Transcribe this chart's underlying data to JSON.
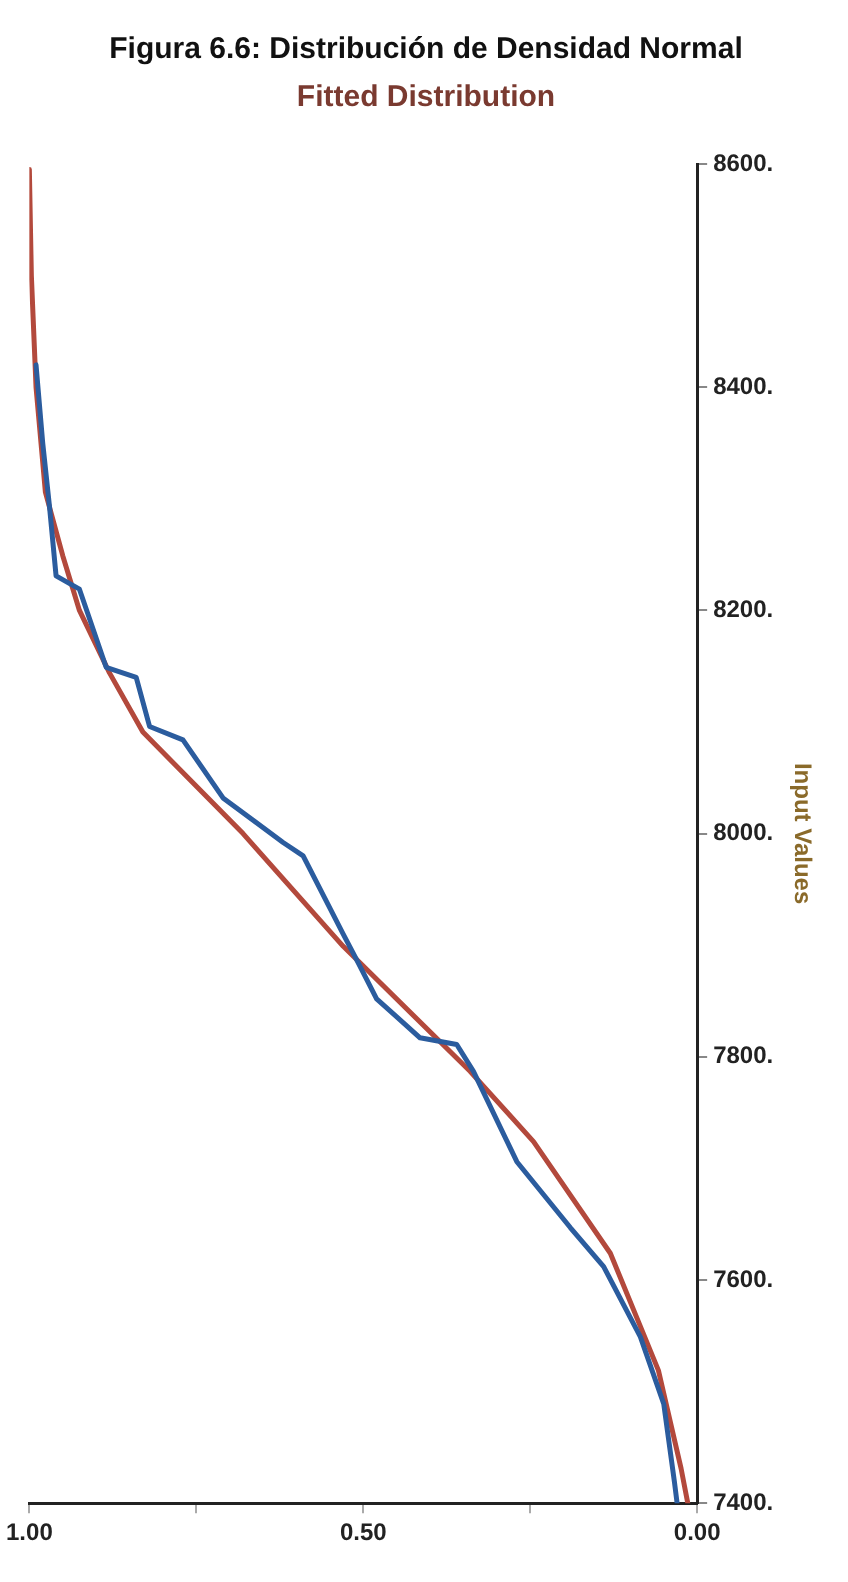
{
  "chart_data": {
    "type": "line",
    "title": "Figura 6.6: Distribución de Densidad Normal",
    "subtitle": "Fitted Distribution",
    "ylabel": "Input Values",
    "ylim": [
      7400,
      8600
    ],
    "yticks": [
      {
        "value": 7400,
        "label": "7400."
      },
      {
        "value": 7600,
        "label": "7600."
      },
      {
        "value": 7800,
        "label": "7800."
      },
      {
        "value": 8000,
        "label": "8000."
      },
      {
        "value": 8200,
        "label": "8200."
      },
      {
        "value": 8400,
        "label": "8400."
      },
      {
        "value": 8600,
        "label": "8600."
      }
    ],
    "xlim": [
      1,
      0
    ],
    "xticks": [
      {
        "value": 1,
        "label": "1.00"
      },
      {
        "value": 0.75,
        "label": null
      },
      {
        "value": 0.5,
        "label": "0.50"
      },
      {
        "value": 0.25,
        "label": null
      },
      {
        "value": 0,
        "label": "0.00"
      }
    ],
    "grid": false,
    "legend": false,
    "marker": "none",
    "line_style": "solid",
    "series": [
      {
        "color": "#2b5c9e",
        "x": [
          0.03,
          0.034,
          0.05,
          0.085,
          0.14,
          0.19,
          0.27,
          0.335,
          0.36,
          0.415,
          0.48,
          0.51,
          0.53,
          0.59,
          0.62,
          0.71,
          0.77,
          0.82,
          0.84,
          0.885,
          0.925,
          0.96,
          0.97,
          0.98,
          0.99
        ],
        "values": [
          7400,
          7419,
          7489,
          7549,
          7612,
          7647,
          7706,
          7787,
          7811,
          7817,
          7852,
          7887,
          7910,
          7980,
          7992,
          8032,
          8084,
          8096,
          8140,
          8149,
          8219,
          8231,
          8294,
          8350,
          8420
        ]
      },
      {
        "color": "#b3493c",
        "x": [
          0.014,
          0.024,
          0.058,
          0.13,
          0.245,
          0.34,
          0.53,
          0.68,
          0.83,
          0.88,
          0.925,
          0.95,
          0.976,
          0.99,
          0.997,
          1.0
        ],
        "values": [
          7400,
          7431,
          7519,
          7624,
          7724,
          7787,
          7899,
          8000,
          8091,
          8144,
          8200,
          8249,
          8306,
          8400,
          8500,
          8595
        ]
      }
    ]
  }
}
